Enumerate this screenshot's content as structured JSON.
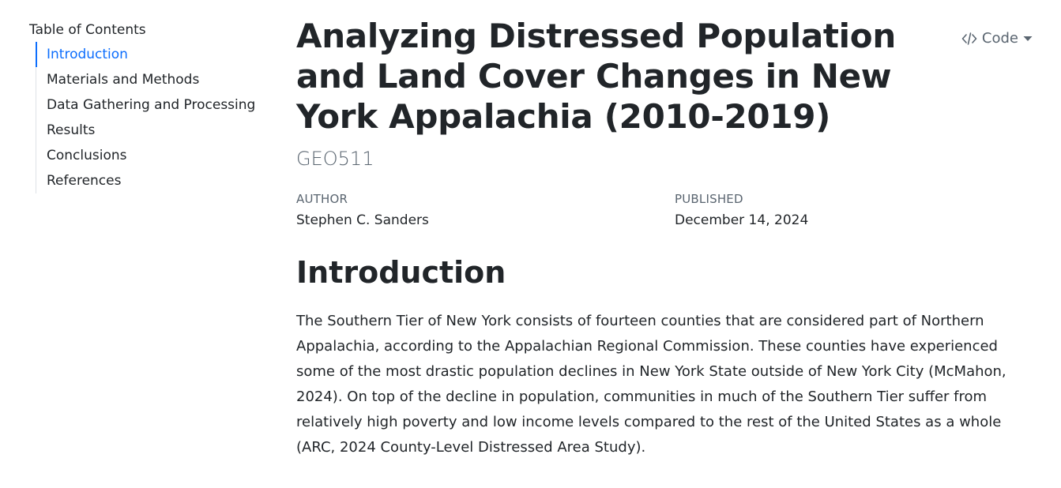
{
  "toc": {
    "title": "Table of Contents",
    "items": [
      {
        "label": "Introduction",
        "active": true
      },
      {
        "label": "Materials and Methods"
      },
      {
        "label": "Data Gathering and Processing"
      },
      {
        "label": "Results"
      },
      {
        "label": "Conclusions"
      },
      {
        "label": "References"
      }
    ]
  },
  "header": {
    "title": "Analyzing Distressed Population and Land Cover Changes in New York Appalachia (2010-2019)",
    "subtitle": "GEO511",
    "code_button_label": "Code",
    "code_icon": "code-icon",
    "dropdown_icon": "caret-down-icon"
  },
  "meta": {
    "author_heading": "AUTHOR",
    "author": "Stephen C. Sanders",
    "published_heading": "PUBLISHED",
    "published": "December 14, 2024"
  },
  "content": {
    "section_heading": "Introduction",
    "paragraph": "The Southern Tier of New York consists of fourteen counties that are considered part of Northern Appalachia, according to the Appalachian Regional Commission. These counties have experienced some of the most drastic population declines in New York State outside of New York City (McMahon, 2024). On top of the decline in population, communities in much of the Southern Tier suffer from relatively high poverty and low income levels compared to the rest of the United States as a whole (ARC, 2024 County-Level Distressed Area Study)."
  },
  "colors": {
    "accent": "#0d6efd",
    "text": "#212529",
    "muted": "#5a6570"
  }
}
